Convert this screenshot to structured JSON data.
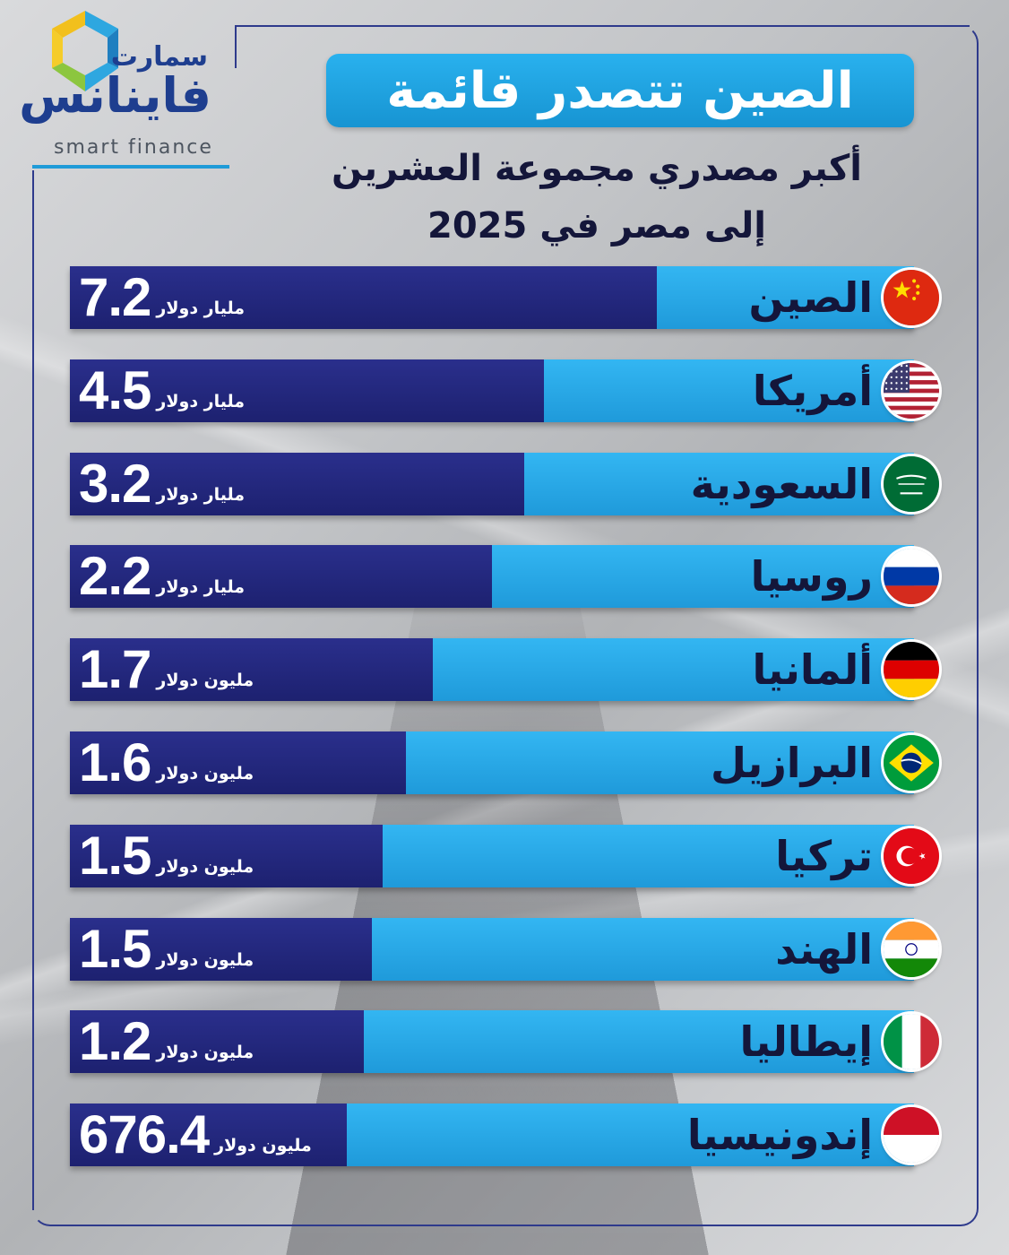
{
  "logo": {
    "ar_top": "سمارت",
    "ar_main": "فاينانس",
    "en": "smart finance"
  },
  "title": "الصين تتصدر قائمة",
  "subtitle_line1": "أكبر مصدري مجموعة العشرين",
  "subtitle_line2": "إلى مصر في 2025",
  "colors": {
    "bar_light": "#23a4e3",
    "bar_dark": "#23287e",
    "title_bg": "#1fa2e0",
    "text_dark": "#14163a"
  },
  "chart_data": {
    "type": "bar",
    "categories": [
      "الصين",
      "أمريكا",
      "السعودية",
      "روسيا",
      "ألمانيا",
      "البرازيل",
      "تركيا",
      "الهند",
      "إيطاليا",
      "إندونيسيا"
    ],
    "values": [
      7.2,
      4.5,
      3.2,
      2.2,
      1.7,
      1.6,
      1.5,
      1.5,
      1.2,
      676.4
    ],
    "units": [
      "مليار دولار",
      "مليار دولار",
      "مليار دولار",
      "مليار دولار",
      "مليون دولار",
      "مليون دولار",
      "مليون دولار",
      "مليون دولار",
      "مليون دولار",
      "مليون دولار"
    ],
    "value_labels": [
      "7.2",
      "4.5",
      "3.2",
      "2.2",
      "1.7",
      "1.6",
      "1.5",
      "1.5",
      "1.2",
      "676.4"
    ],
    "dark_bar_fraction": [
      0.695,
      0.562,
      0.538,
      0.5,
      0.43,
      0.398,
      0.37,
      0.358,
      0.348,
      0.328
    ],
    "flag_icons": [
      "flag-china-icon",
      "flag-usa-icon",
      "flag-saudi-icon",
      "flag-russia-icon",
      "flag-germany-icon",
      "flag-brazil-icon",
      "flag-turkey-icon",
      "flag-india-icon",
      "flag-italy-icon",
      "flag-indonesia-icon"
    ]
  }
}
